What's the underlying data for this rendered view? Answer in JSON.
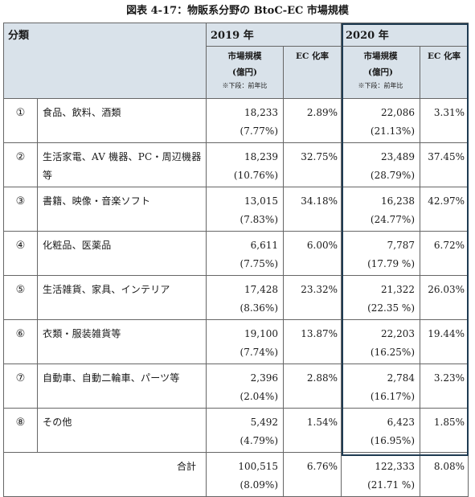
{
  "title": "図表 4-17：物販系分野の BtoC-EC 市場規模",
  "header": {
    "category": "分類",
    "year_2019": "2019 年",
    "year_2020": "2020 年",
    "market_size": "市場規模",
    "unit": "(億円)",
    "note": "※下段：前年比",
    "ec_rate": "EC 化率"
  },
  "rows": [
    {
      "no": "①",
      "name": "食品、飲料、酒類",
      "v2019": "18,233",
      "g2019": "(7.77%)",
      "r2019": "2.89%",
      "v2020": "22,086",
      "g2020": "(21.13%)",
      "r2020": "3.31%"
    },
    {
      "no": "②",
      "name": "生活家電、AV 機器、PC・周辺機器等",
      "v2019": "18,239",
      "g2019": "(10.76%)",
      "r2019": "32.75%",
      "v2020": "23,489",
      "g2020": "(28.79%)",
      "r2020": "37.45%"
    },
    {
      "no": "③",
      "name": "書籍、映像・音楽ソフト",
      "v2019": "13,015",
      "g2019": "(7.83%)",
      "r2019": "34.18%",
      "v2020": "16,238",
      "g2020": "(24.77%)",
      "r2020": "42.97%"
    },
    {
      "no": "④",
      "name": "化粧品、医薬品",
      "v2019": "6,611",
      "g2019": "(7.75%)",
      "r2019": "6.00%",
      "v2020": "7,787",
      "g2020": "(17.79 %)",
      "r2020": "6.72%"
    },
    {
      "no": "⑤",
      "name": "生活雑貨、家具、インテリア",
      "v2019": "17,428",
      "g2019": "(8.36%)",
      "r2019": "23.32%",
      "v2020": "21,322",
      "g2020": "(22.35 %)",
      "r2020": "26.03%"
    },
    {
      "no": "⑥",
      "name": "衣類・服装雑貨等",
      "v2019": "19,100",
      "g2019": "(7.74%)",
      "r2019": "13.87%",
      "v2020": "22,203",
      "g2020": "(16.25%)",
      "r2020": "19.44%"
    },
    {
      "no": "⑦",
      "name": "自動車、自動二輪車、パーツ等",
      "v2019": "2,396",
      "g2019": "(2.04%)",
      "r2019": "2.88%",
      "v2020": "2,784",
      "g2020": "(16.17%)",
      "r2020": "3.23%"
    },
    {
      "no": "⑧",
      "name": "その他",
      "v2019": "5,492",
      "g2019": "(4.79%)",
      "r2019": "1.54%",
      "v2020": "6,423",
      "g2020": "(16.95%)",
      "r2020": "1.85%"
    }
  ],
  "total": {
    "label": "合計",
    "v2019": "100,515",
    "g2019": "(8.09%)",
    "r2019": "6.76%",
    "v2020": "122,333",
    "g2020": "(21.71 %)",
    "r2020": "8.08%"
  }
}
